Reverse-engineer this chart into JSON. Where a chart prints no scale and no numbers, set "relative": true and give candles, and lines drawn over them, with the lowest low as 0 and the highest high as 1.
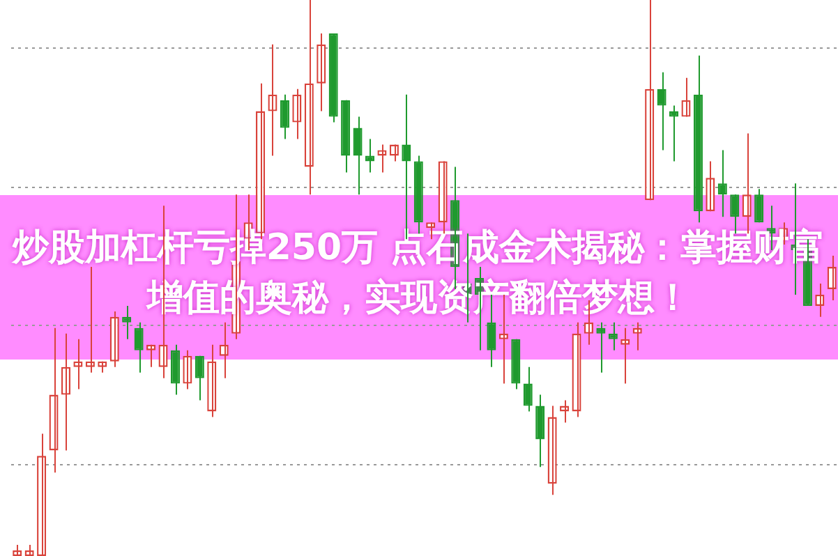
{
  "chart_data": {
    "type": "candlestick",
    "title": "炒股加杠杆亏掉250万 点石成金术揭秘：掌握财富增值的奥秘，实现资产翻倍梦想！",
    "relative": true,
    "grid": "y",
    "categories": [
      null,
      null,
      null,
      null,
      null,
      null,
      null,
      null,
      null,
      null,
      null,
      null,
      null,
      null,
      null,
      null,
      null,
      null,
      null,
      null,
      null,
      null,
      null,
      null,
      null,
      null,
      null,
      null,
      null,
      null,
      null,
      null,
      null,
      null,
      null,
      null,
      null,
      null,
      null,
      null,
      null,
      null,
      null,
      null,
      null,
      null,
      null,
      null,
      null,
      null,
      null,
      null,
      null,
      null,
      null,
      null,
      null,
      null,
      null,
      null,
      null,
      null,
      null,
      null,
      null,
      null,
      null,
      null
    ],
    "ohlc": [
      [
        0,
        0.02,
        0,
        0.01
      ],
      [
        0,
        0.02,
        0,
        0.01
      ],
      [
        0.0,
        0.22,
        0,
        0.18
      ],
      [
        0.19,
        0.41,
        0.15,
        0.29
      ],
      [
        0.29,
        0.4,
        0.19,
        0.34
      ],
      [
        0.34,
        0.39,
        0.3,
        0.35
      ],
      [
        0.34,
        0.52,
        0.33,
        0.35
      ],
      [
        0.34,
        0.35,
        0.33,
        0.35
      ],
      [
        0.35,
        0.44,
        0.34,
        0.43
      ],
      [
        0.43,
        0.45,
        0.39,
        0.42
      ],
      [
        0.41,
        0.42,
        0.33,
        0.37
      ],
      [
        0.37,
        0.38,
        0.34,
        0.38
      ],
      [
        0.34,
        0.63,
        0.32,
        0.38
      ],
      [
        0.37,
        0.38,
        0.29,
        0.31
      ],
      [
        0.31,
        0.37,
        0.3,
        0.36
      ],
      [
        0.36,
        0.36,
        0.28,
        0.32
      ],
      [
        0.26,
        0.38,
        0.25,
        0.35
      ],
      [
        0.36,
        0.42,
        0.32,
        0.38
      ],
      [
        0.4,
        0.65,
        0.39,
        0.53
      ],
      [
        0.57,
        0.65,
        0.55,
        0.6
      ],
      [
        0.58,
        0.85,
        0.57,
        0.8
      ],
      [
        0.8,
        0.92,
        0.72,
        0.83
      ],
      [
        0.82,
        0.83,
        0.75,
        0.77
      ],
      [
        0.78,
        0.84,
        0.75,
        0.83
      ],
      [
        0.7,
        1,
        0.65,
        0.85
      ],
      [
        0.85,
        0.94,
        0.8,
        0.92
      ],
      [
        0.94,
        0.94,
        0.78,
        0.79
      ],
      [
        0.82,
        0.82,
        0.69,
        0.72
      ],
      [
        0.77,
        0.79,
        0.65,
        0.72
      ],
      [
        0.72,
        0.75,
        0.69,
        0.71
      ],
      [
        0.72,
        0.74,
        0.69,
        0.73
      ],
      [
        0.72,
        0.74,
        0.71,
        0.74
      ],
      [
        0.74,
        0.83,
        0.57,
        0.71
      ],
      [
        0.71,
        0.72,
        0.58,
        0.6
      ],
      [
        0.59,
        0.6,
        0.57,
        0.6
      ],
      [
        0.6,
        0.71,
        0.58,
        0.71
      ],
      [
        0.64,
        0.7,
        0.48,
        0.52
      ],
      [
        0.49,
        0.58,
        0.42,
        0.47
      ],
      [
        0.5,
        0.52,
        0.37,
        0.47
      ],
      [
        0.42,
        0.47,
        0.34,
        0.37
      ],
      [
        0.39,
        0.47,
        0.31,
        0.4
      ],
      [
        0.39,
        0.39,
        0.3,
        0.31
      ],
      [
        0.31,
        0.34,
        0.26,
        0.27
      ],
      [
        0.27,
        0.29,
        0.16,
        0.21
      ],
      [
        0.13,
        0.27,
        0.11,
        0.25
      ],
      [
        0.26,
        0.28,
        0.24,
        0.27
      ],
      [
        0.26,
        0.42,
        0.25,
        0.4
      ],
      [
        0.4,
        0.46,
        0.38,
        0.42
      ],
      [
        0.41,
        0.42,
        0.33,
        0.4
      ],
      [
        0.4,
        0.42,
        0.37,
        0.39
      ],
      [
        0.38,
        0.41,
        0.31,
        0.39
      ],
      [
        0.4,
        0.42,
        0.37,
        0.41
      ],
      [
        0.64,
        1,
        0.64,
        0.84
      ],
      [
        0.84,
        0.87,
        0.73,
        0.81
      ],
      [
        0.8,
        0.81,
        0.71,
        0.79
      ],
      [
        0.79,
        0.86,
        0.79,
        0.82
      ],
      [
        0.83,
        0.9,
        0.6,
        0.62
      ],
      [
        0.62,
        0.71,
        0.62,
        0.68
      ],
      [
        0.67,
        0.73,
        0.61,
        0.65
      ],
      [
        0.65,
        0.65,
        0.58,
        0.61
      ],
      [
        0.61,
        0.76,
        0.58,
        0.65
      ],
      [
        0.65,
        0.66,
        0.6,
        0.6
      ],
      [
        0.59,
        0.63,
        0.55,
        0.58
      ],
      [
        0.57,
        0.6,
        0.56,
        0.59
      ],
      [
        0.56,
        0.67,
        0.47,
        0.55
      ],
      [
        0.56,
        0.57,
        0.45,
        0.45
      ],
      [
        0.45,
        0.49,
        0.43,
        0.47
      ],
      [
        0.48,
        0.54,
        0.46,
        0.52
      ]
    ],
    "colors": [
      "#d9433b",
      "#d9433b",
      "#d9433b",
      "#d9433b",
      "#d9433b",
      "#d9433b",
      "#d9433b",
      "#d9433b",
      "#d9433b",
      "#1f9a2e",
      "#1f9a2e",
      "#d9433b",
      "#d9433b",
      "#1f9a2e",
      "#d9433b",
      "#1f9a2e",
      "#d9433b",
      "#d9433b",
      "#d9433b",
      "#d9433b",
      "#d9433b",
      "#d9433b",
      "#1f9a2e",
      "#d9433b",
      "#d9433b",
      "#d9433b",
      "#1f9a2e",
      "#1f9a2e",
      "#1f9a2e",
      "#1f9a2e",
      "#d9433b",
      "#d9433b",
      "#1f9a2e",
      "#1f9a2e",
      "#d9433b",
      "#d9433b",
      "#1f9a2e",
      "#1f9a2e",
      "#1f9a2e",
      "#1f9a2e",
      "#d9433b",
      "#1f9a2e",
      "#1f9a2e",
      "#1f9a2e",
      "#d9433b",
      "#d9433b",
      "#d9433b",
      "#d9433b",
      "#1f9a2e",
      "#1f9a2e",
      "#d9433b",
      "#d9433b",
      "#d9433b",
      "#1f9a2e",
      "#1f9a2e",
      "#d9433b",
      "#1f9a2e",
      "#d9433b",
      "#1f9a2e",
      "#1f9a2e",
      "#d9433b",
      "#1f9a2e",
      "#1f9a2e",
      "#d9433b",
      "#1f9a2e",
      "#1f9a2e",
      "#d9433b",
      "#d9433b"
    ]
  }
}
